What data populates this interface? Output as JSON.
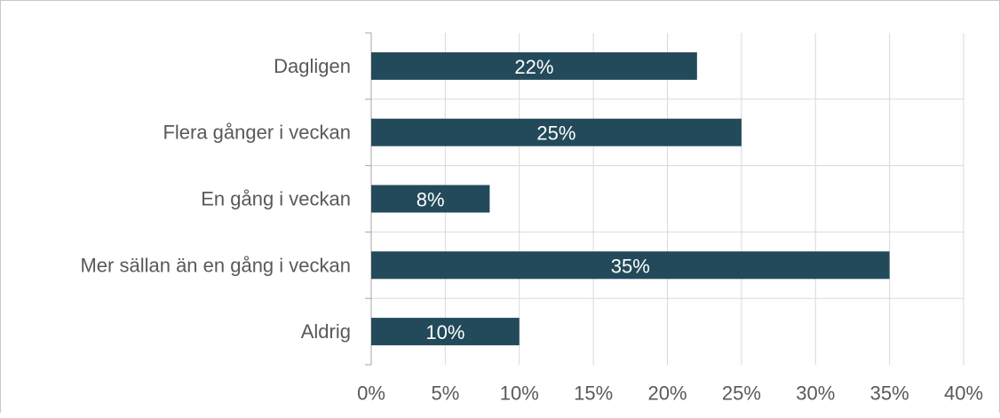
{
  "chart_data": {
    "type": "bar",
    "orientation": "horizontal",
    "categories": [
      "Dagligen",
      "Flera gånger i veckan",
      "En gång i veckan",
      "Mer sällan än en gång i veckan",
      "Aldrig"
    ],
    "values": [
      22,
      25,
      8,
      35,
      10
    ],
    "data_labels": [
      "22%",
      "25%",
      "8%",
      "35%",
      "10%"
    ],
    "xlim": [
      0,
      40
    ],
    "x_ticks": [
      0,
      5,
      10,
      15,
      20,
      25,
      30,
      35,
      40
    ],
    "x_tick_labels": [
      "0%",
      "5%",
      "10%",
      "15%",
      "20%",
      "25%",
      "30%",
      "35%",
      "40%"
    ],
    "title": "",
    "xlabel": "",
    "ylabel": "",
    "grid": true,
    "legend": "none",
    "colors": {
      "bar": "#234a5a",
      "grid": "#d9d9d9",
      "axis": "#a6a6a6",
      "label_text": "#595959",
      "data_label_text": "#ffffff"
    }
  }
}
